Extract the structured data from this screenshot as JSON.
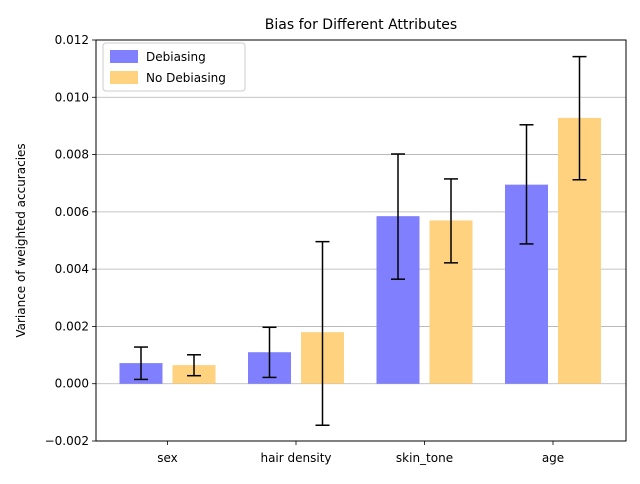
{
  "chart_data": {
    "type": "bar",
    "title": "Bias for Different Attributes",
    "xlabel": "",
    "ylabel": "Variance of weighted accuracies",
    "categories": [
      "sex",
      "hair density",
      "skin_tone",
      "age"
    ],
    "series": [
      {
        "name": "Debiasing",
        "color": "#8080ff",
        "values": [
          0.00072,
          0.0011,
          0.00585,
          0.00695
        ],
        "error_low": [
          0.00015,
          0.00022,
          0.00365,
          0.00488
        ],
        "error_high": [
          0.00128,
          0.00197,
          0.00802,
          0.00904
        ]
      },
      {
        "name": "No Debiasing",
        "color": "#ffd280",
        "values": [
          0.00065,
          0.0018,
          0.0057,
          0.00928
        ],
        "error_low": [
          0.00028,
          -0.00145,
          0.00422,
          0.00712
        ],
        "error_high": [
          0.00101,
          0.00496,
          0.00715,
          0.01142
        ]
      }
    ],
    "ylim": [
      -0.002,
      0.012
    ],
    "yticks": [
      -0.002,
      0.0,
      0.002,
      0.004,
      0.006,
      0.008,
      0.01,
      0.012
    ],
    "ytick_labels": [
      "−0.002",
      "0.000",
      "0.002",
      "0.004",
      "0.006",
      "0.008",
      "0.010",
      "0.012"
    ],
    "grid": "horizontal",
    "legend_position": "top-left"
  }
}
